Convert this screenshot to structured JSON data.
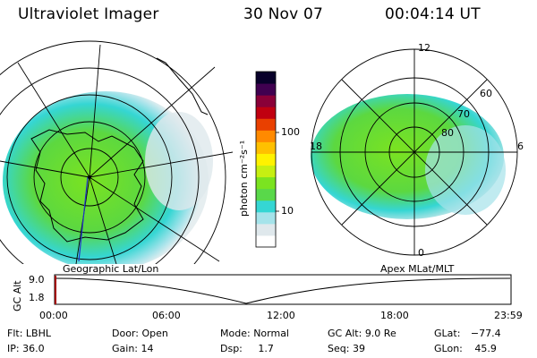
{
  "header": {
    "instrument": "Ultraviolet Imager",
    "date": "30 Nov 07",
    "time": "00:04:14 UT"
  },
  "left_panel": {
    "caption": "Geographic Lat/Lon"
  },
  "right_panel": {
    "caption": "Apex MLat/MLT",
    "mlt_labels": [
      "12",
      "18",
      "6",
      "0"
    ],
    "mlat_labels": [
      "60",
      "70",
      "80"
    ]
  },
  "colorbar": {
    "unit_label": "photon cm⁻²s⁻¹",
    "ticks": [
      "100",
      "10"
    ],
    "scale": "log",
    "colors": [
      "#ffffff",
      "#dfe8ec",
      "#a5e3ea",
      "#35d6d3",
      "#59d84a",
      "#7be320",
      "#c6ef12",
      "#fff200",
      "#ffc000",
      "#ff8a00",
      "#e94000",
      "#c00010",
      "#8a0038",
      "#400050",
      "#08002a"
    ]
  },
  "altitude_plot": {
    "ylabel": "GC Alt",
    "yticks": [
      "9.0",
      "1.8"
    ],
    "xticks": [
      "00:00",
      "06:00",
      "12:00",
      "18:00",
      "23:59"
    ]
  },
  "status": {
    "col1": [
      {
        "label": "Flt:",
        "value": "LBHL"
      },
      {
        "label": "IP:",
        "value": "36.0"
      }
    ],
    "col2": [
      {
        "label": "Door:",
        "value": "Open"
      },
      {
        "label": "Gain:",
        "value": "14"
      }
    ],
    "col3": [
      {
        "label": "Mode:",
        "value": "Normal"
      },
      {
        "label": "Dsp:",
        "value": "1.7"
      }
    ],
    "col4": [
      {
        "label": "GC Alt:",
        "value": "9.0 Re"
      },
      {
        "label": "Seq:",
        "value": "39"
      }
    ],
    "col5": [
      {
        "label": "GLat:",
        "value": "−77.4"
      },
      {
        "label": "GLon:",
        "value": "45.9"
      }
    ]
  }
}
